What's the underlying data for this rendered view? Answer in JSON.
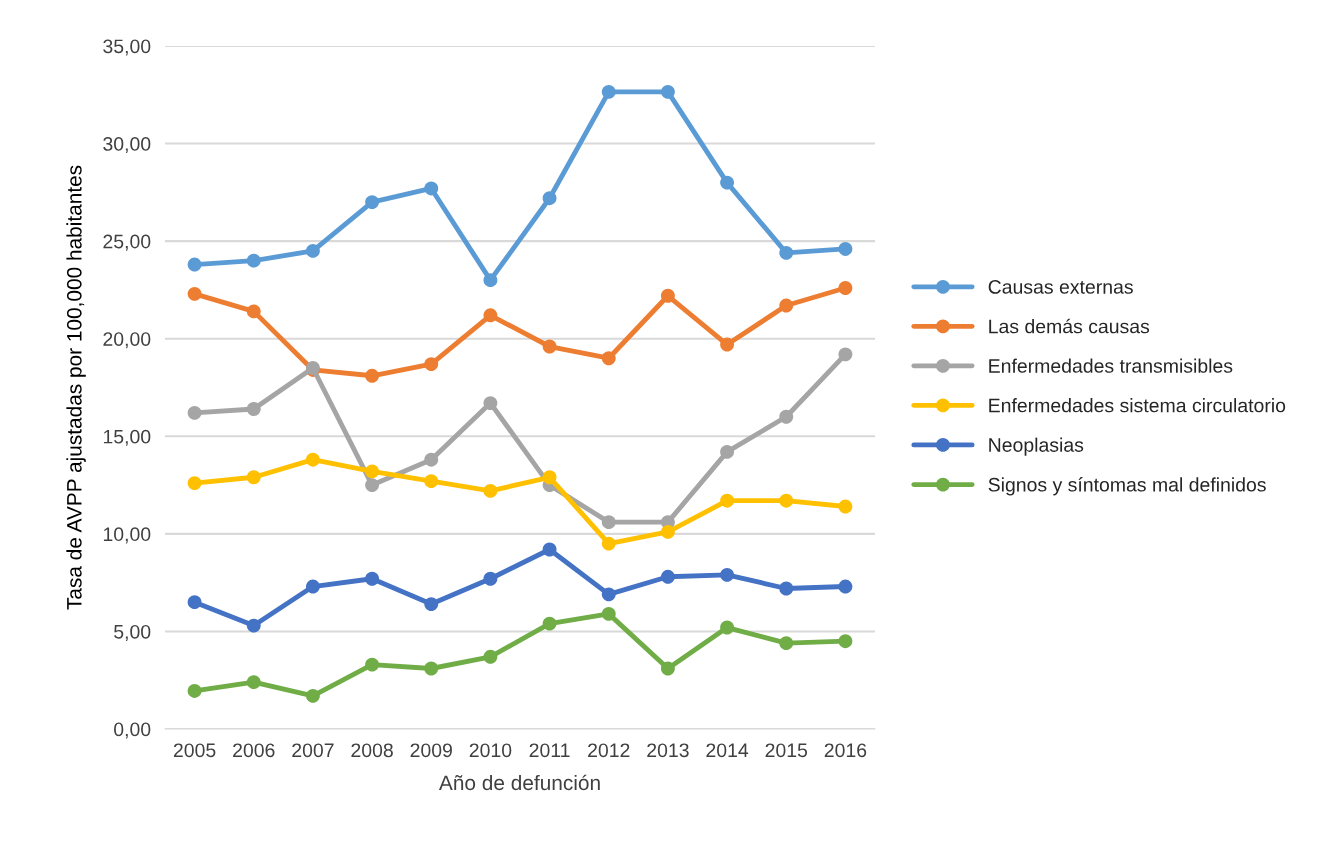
{
  "chart_data": {
    "type": "line",
    "xlabel": "Año de defunción",
    "ylabel": "Tasa de AVPP ajustadas por 100,000 habitantes",
    "categories": [
      "2005",
      "2006",
      "2007",
      "2008",
      "2009",
      "2010",
      "2011",
      "2012",
      "2013",
      "2014",
      "2015",
      "2016"
    ],
    "series": [
      {
        "name": "Causas externas",
        "color": "#5b9bd5",
        "values": [
          23.8,
          24.0,
          24.5,
          27.0,
          27.7,
          23.0,
          27.2,
          32.65,
          32.65,
          28.0,
          24.4,
          24.6
        ]
      },
      {
        "name": "Las demás causas",
        "color": "#ed7d31",
        "values": [
          22.3,
          21.4,
          18.4,
          18.1,
          18.7,
          21.2,
          19.6,
          19.0,
          22.2,
          19.7,
          21.7,
          22.6
        ]
      },
      {
        "name": "Enfermedades transmisibles",
        "color": "#a5a5a5",
        "values": [
          16.2,
          16.4,
          18.5,
          12.5,
          13.8,
          16.7,
          12.5,
          10.6,
          10.6,
          14.2,
          16.0,
          19.2
        ]
      },
      {
        "name": "Enfermedades sistema circulatorio",
        "color": "#ffc000",
        "values": [
          12.6,
          12.9,
          13.8,
          13.2,
          12.7,
          12.2,
          12.9,
          9.5,
          10.1,
          11.7,
          11.7,
          11.4
        ]
      },
      {
        "name": "Neoplasias",
        "color": "#4472c4",
        "values": [
          6.5,
          5.3,
          7.3,
          7.7,
          6.4,
          7.7,
          9.2,
          6.9,
          7.8,
          7.9,
          7.2,
          7.3
        ]
      },
      {
        "name": "Signos y síntomas mal definidos",
        "color": "#70ad47",
        "values": [
          1.95,
          2.4,
          1.7,
          3.3,
          3.1,
          3.7,
          5.4,
          5.9,
          3.1,
          5.2,
          4.4,
          4.5
        ]
      }
    ],
    "ylim": [
      0,
      35
    ],
    "yticks": [
      {
        "value": 0,
        "label": "0,00"
      },
      {
        "value": 5,
        "label": "5,00"
      },
      {
        "value": 10,
        "label": "10,00"
      },
      {
        "value": 15,
        "label": "15,00"
      },
      {
        "value": 20,
        "label": "20,00"
      },
      {
        "value": 25,
        "label": "25,00"
      },
      {
        "value": 30,
        "label": "30,00"
      },
      {
        "value": 35,
        "label": "35,00"
      }
    ],
    "grid": "y",
    "legend": "right",
    "marker": "circle",
    "line_style": "solid"
  }
}
